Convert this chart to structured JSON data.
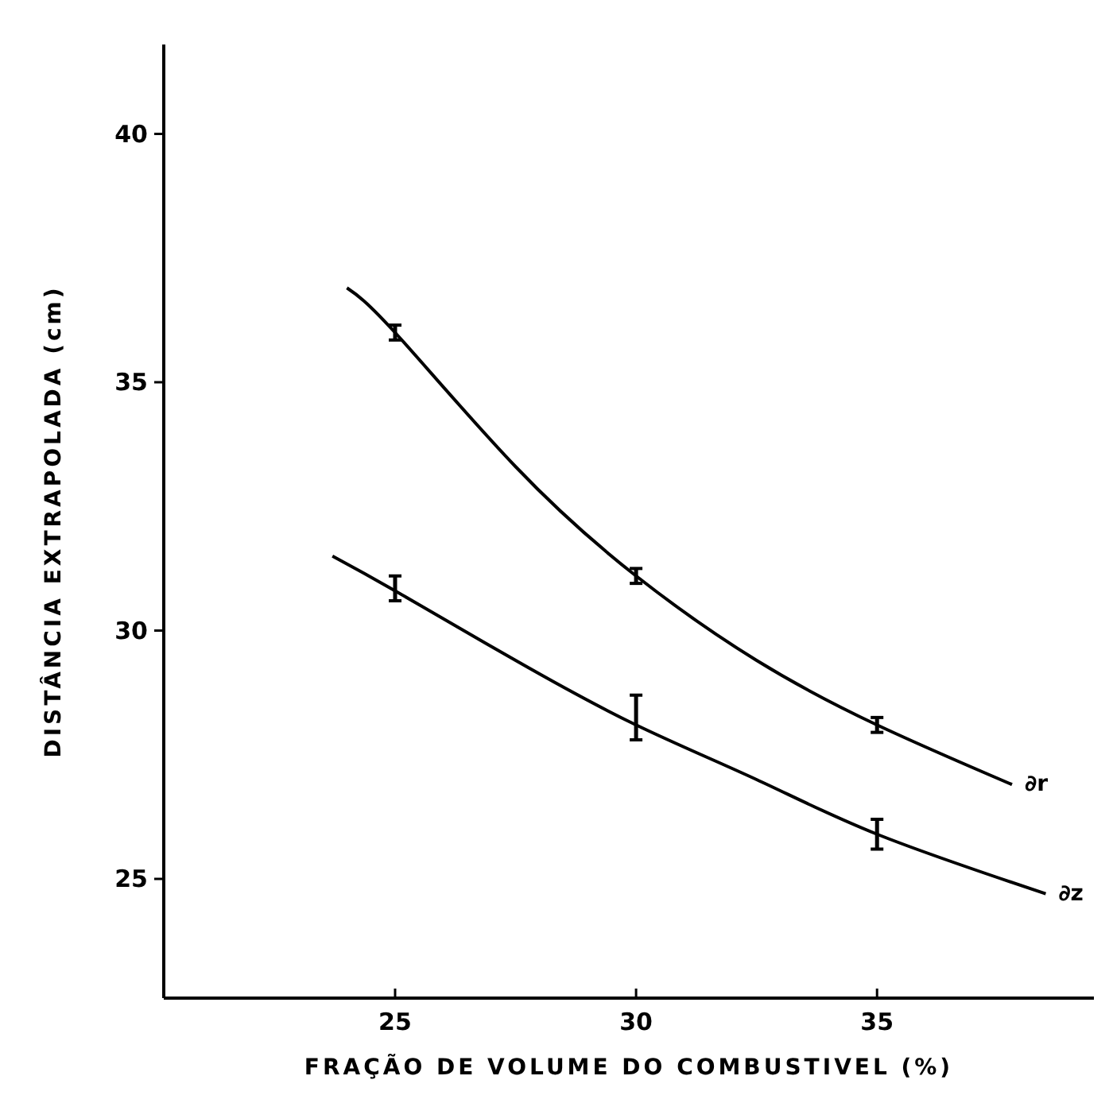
{
  "chart_data": {
    "type": "line",
    "xlabel": "FRAÇÃO DE VOLUME DO COMBUSTIVEL (%)",
    "ylabel": "DISTÂNCIA EXTRAPOLADA (cm)",
    "xlim": [
      20.2,
      39.5
    ],
    "ylim": [
      22.6,
      41.8
    ],
    "xticks": [
      25,
      30,
      35
    ],
    "yticks": [
      25,
      30,
      35,
      40
    ],
    "grid": false,
    "marker": "none",
    "line_style": "solid",
    "series": [
      {
        "name": "∂r",
        "color": "#000000",
        "x": [
          24,
          25,
          27.5,
          30,
          32.5,
          35,
          37.8
        ],
        "values": [
          36.9,
          36.0,
          33.3,
          31.1,
          29.4,
          28.1,
          26.9
        ],
        "errors": [
          null,
          0.15,
          null,
          0.15,
          null,
          0.15,
          null
        ]
      },
      {
        "name": "∂z",
        "color": "#000000",
        "x": [
          23.7,
          25,
          27.5,
          30,
          32.5,
          35,
          38.5
        ],
        "values": [
          31.5,
          30.8,
          29.4,
          28.1,
          27.0,
          25.9,
          24.7
        ],
        "errors": [
          null,
          [
            30.6,
            31.1
          ],
          null,
          [
            27.8,
            28.7
          ],
          null,
          [
            25.6,
            26.2
          ],
          null
        ]
      }
    ]
  }
}
